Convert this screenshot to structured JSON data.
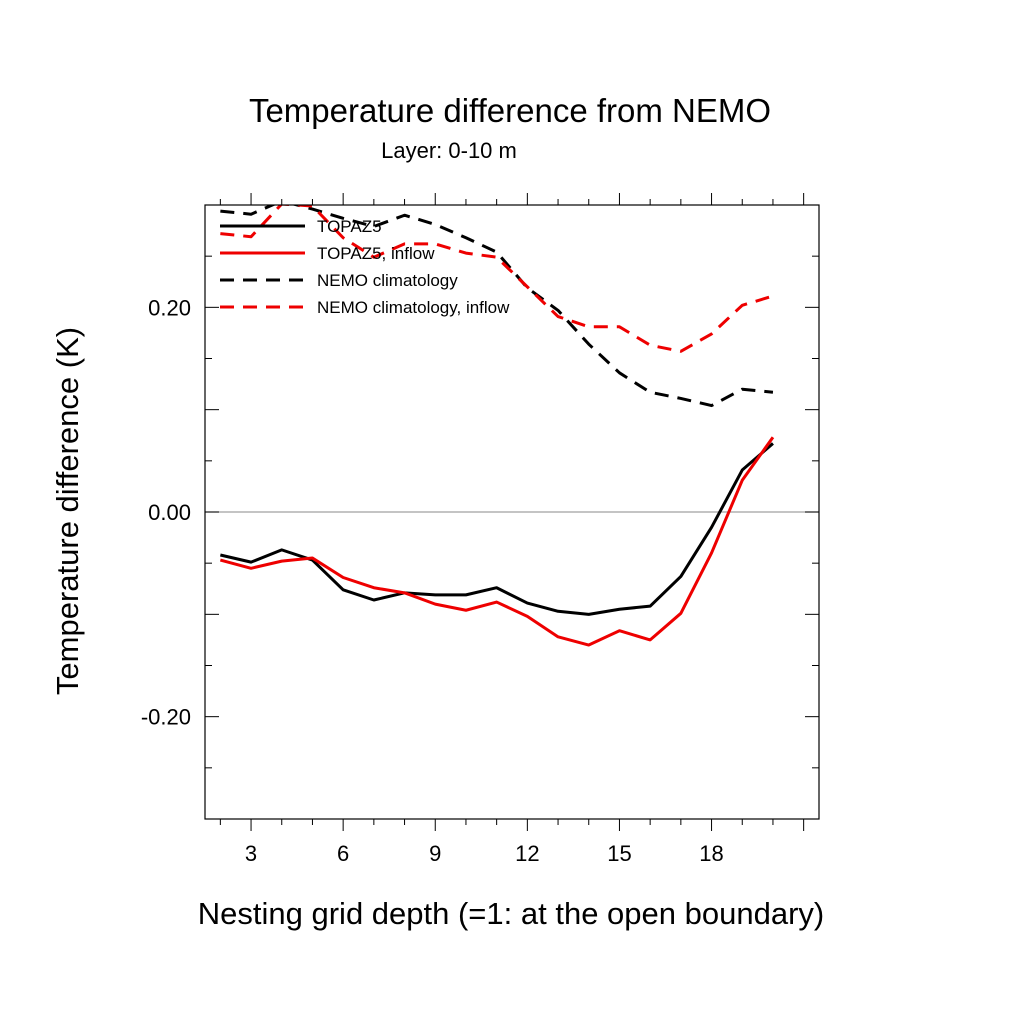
{
  "chart_data": {
    "type": "line",
    "title": "Temperature difference from NEMO",
    "subtitle": "Layer: 0-10 m",
    "xlabel": "Nesting grid depth (=1: at the open boundary)",
    "ylabel": "Temperature difference (K)",
    "xlim": [
      1.5,
      21.5
    ],
    "ylim": [
      -0.3,
      0.3
    ],
    "xticks": [
      3,
      6,
      9,
      12,
      15,
      18
    ],
    "xtick_labels": [
      "3",
      "6",
      "9",
      "12",
      "15",
      "18"
    ],
    "yticks": [
      -0.2,
      0.0,
      0.2
    ],
    "ytick_labels": [
      "-0.20",
      "0.00",
      "0.20"
    ],
    "grid": false,
    "zero_line": true,
    "legend_position": "top-left",
    "x": [
      2,
      3,
      4,
      5,
      6,
      7,
      8,
      9,
      10,
      11,
      12,
      13,
      14,
      15,
      16,
      17,
      18,
      19,
      20,
      21
    ],
    "series": [
      {
        "name": "TOPAZ5",
        "color": "#000000",
        "dash": "solid",
        "values": [
          -0.042,
          -0.049,
          -0.037,
          -0.047,
          -0.076,
          -0.086,
          -0.079,
          -0.081,
          -0.081,
          -0.074,
          -0.089,
          -0.097,
          -0.1,
          -0.095,
          -0.092,
          -0.063,
          -0.015,
          0.041,
          0.067,
          null
        ]
      },
      {
        "name": "TOPAZ5, inflow",
        "color": "#ee0000",
        "dash": "solid",
        "values": [
          -0.047,
          -0.055,
          -0.048,
          -0.045,
          -0.064,
          -0.074,
          -0.079,
          -0.09,
          -0.096,
          -0.088,
          -0.102,
          -0.122,
          -0.13,
          -0.116,
          -0.125,
          -0.099,
          -0.04,
          0.031,
          0.073,
          null
        ]
      },
      {
        "name": "NEMO climatology",
        "color": "#000000",
        "dash": "dashed",
        "values": [
          0.294,
          0.291,
          0.304,
          0.296,
          0.287,
          0.279,
          0.29,
          0.281,
          0.268,
          0.254,
          0.219,
          0.197,
          0.164,
          0.136,
          0.117,
          0.111,
          0.104,
          0.12,
          0.117,
          null
        ]
      },
      {
        "name": "NEMO climatology, inflow",
        "color": "#ee0000",
        "dash": "dashed",
        "values": [
          0.272,
          0.269,
          0.301,
          0.299,
          0.268,
          0.249,
          0.262,
          0.262,
          0.253,
          0.249,
          0.22,
          0.191,
          0.181,
          0.181,
          0.163,
          0.157,
          0.174,
          0.202,
          0.211,
          null
        ]
      }
    ]
  }
}
